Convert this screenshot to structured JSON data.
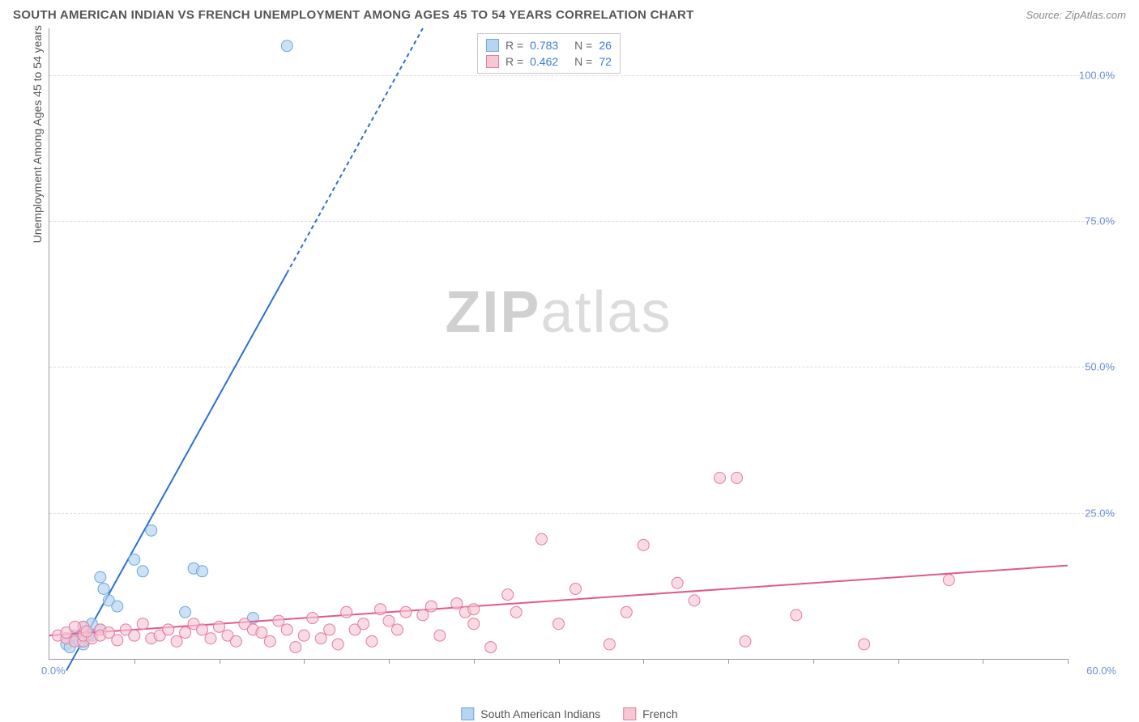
{
  "title": "SOUTH AMERICAN INDIAN VS FRENCH UNEMPLOYMENT AMONG AGES 45 TO 54 YEARS CORRELATION CHART",
  "source_label": "Source: ",
  "source_name": "ZipAtlas.com",
  "ylabel": "Unemployment Among Ages 45 to 54 years",
  "watermark_bold": "ZIP",
  "watermark_light": "atlas",
  "chart": {
    "type": "scatter-correlation",
    "background_color": "#ffffff",
    "grid_color": "#dddddd",
    "grid_style": "dashed",
    "axis_color": "#999999",
    "tick_label_color": "#6b8fd4",
    "xlim": [
      0,
      60
    ],
    "ylim": [
      0,
      108
    ],
    "x_min_label": "0.0%",
    "x_max_label": "60.0%",
    "x_tick_positions": [
      5,
      10,
      15,
      20,
      25,
      30,
      35,
      40,
      45,
      50,
      55,
      60
    ],
    "y_ticks": [
      {
        "value": 25,
        "label": "25.0%"
      },
      {
        "value": 50,
        "label": "50.0%"
      },
      {
        "value": 75,
        "label": "75.0%"
      },
      {
        "value": 100,
        "label": "100.0%"
      }
    ],
    "series": [
      {
        "name": "South American Indians",
        "color_fill": "#b7d4f0",
        "color_stroke": "#6fa8dc",
        "marker_radius": 7,
        "marker_opacity": 0.7,
        "R": "0.783",
        "N": "26",
        "trend": {
          "x1": 1,
          "y1": -2,
          "x2": 22,
          "y2": 108,
          "dash_from_y": 66,
          "color": "#2e6fd0",
          "width": 2
        },
        "points": [
          [
            1,
            2.5
          ],
          [
            1,
            3.5
          ],
          [
            1.5,
            3
          ],
          [
            1.5,
            4
          ],
          [
            2,
            4.5
          ],
          [
            2,
            5.5
          ],
          [
            2,
            3
          ],
          [
            2.5,
            4
          ],
          [
            2.5,
            6
          ],
          [
            3,
            5
          ],
          [
            3,
            14
          ],
          [
            3.5,
            10
          ],
          [
            4,
            9
          ],
          [
            5,
            17
          ],
          [
            5.5,
            15
          ],
          [
            6,
            22
          ],
          [
            8,
            8
          ],
          [
            8.5,
            15.5
          ],
          [
            9,
            15
          ],
          [
            12,
            7
          ],
          [
            2,
            2.5
          ],
          [
            1.2,
            2
          ],
          [
            1.8,
            3
          ],
          [
            2.3,
            4.2
          ],
          [
            3.2,
            12
          ],
          [
            14,
            105
          ]
        ]
      },
      {
        "name": "French",
        "color_fill": "#f6c8d4",
        "color_stroke": "#e57ba0",
        "marker_radius": 7,
        "marker_opacity": 0.65,
        "R": "0.462",
        "N": "72",
        "trend": {
          "x1": 0,
          "y1": 4,
          "x2": 60,
          "y2": 16,
          "color": "#e05a8a",
          "width": 2
        },
        "points": [
          [
            0.5,
            4
          ],
          [
            1,
            3.5
          ],
          [
            1,
            4.5
          ],
          [
            1.5,
            3
          ],
          [
            2,
            3
          ],
          [
            2,
            4
          ],
          [
            2,
            5.5
          ],
          [
            2.5,
            3.5
          ],
          [
            3,
            5
          ],
          [
            3,
            4
          ],
          [
            3.5,
            4.5
          ],
          [
            4,
            3.2
          ],
          [
            4.5,
            5
          ],
          [
            5,
            4
          ],
          [
            5.5,
            6
          ],
          [
            6,
            3.5
          ],
          [
            6.5,
            4
          ],
          [
            7,
            5
          ],
          [
            7.5,
            3
          ],
          [
            8,
            4.5
          ],
          [
            8.5,
            6
          ],
          [
            9,
            5
          ],
          [
            9.5,
            3.5
          ],
          [
            10,
            5.5
          ],
          [
            10.5,
            4
          ],
          [
            11,
            3
          ],
          [
            11.5,
            6
          ],
          [
            12,
            5
          ],
          [
            12.5,
            4.5
          ],
          [
            13,
            3
          ],
          [
            13.5,
            6.5
          ],
          [
            14,
            5
          ],
          [
            14.5,
            2
          ],
          [
            15,
            4
          ],
          [
            15.5,
            7
          ],
          [
            16,
            3.5
          ],
          [
            16.5,
            5
          ],
          [
            17,
            2.5
          ],
          [
            17.5,
            8
          ],
          [
            18,
            5
          ],
          [
            18.5,
            6
          ],
          [
            19,
            3
          ],
          [
            19.5,
            8.5
          ],
          [
            20,
            6.5
          ],
          [
            20.5,
            5
          ],
          [
            21,
            8
          ],
          [
            22,
            7.5
          ],
          [
            22.5,
            9
          ],
          [
            23,
            4
          ],
          [
            24,
            9.5
          ],
          [
            24.5,
            8
          ],
          [
            25,
            6
          ],
          [
            25,
            8.5
          ],
          [
            26,
            2
          ],
          [
            27,
            11
          ],
          [
            27.5,
            8
          ],
          [
            29,
            20.5
          ],
          [
            30,
            6
          ],
          [
            31,
            12
          ],
          [
            33,
            2.5
          ],
          [
            34,
            8
          ],
          [
            35,
            19.5
          ],
          [
            37,
            13
          ],
          [
            38,
            10
          ],
          [
            39.5,
            31
          ],
          [
            40.5,
            31
          ],
          [
            41,
            3
          ],
          [
            44,
            7.5
          ],
          [
            48,
            2.5
          ],
          [
            53,
            13.5
          ],
          [
            1.5,
            5.5
          ],
          [
            2.2,
            4.7
          ]
        ]
      }
    ]
  },
  "legend_top": {
    "R_label": "R =",
    "N_label": "N ="
  },
  "legend_bottom_items": [
    "South American Indians",
    "French"
  ]
}
